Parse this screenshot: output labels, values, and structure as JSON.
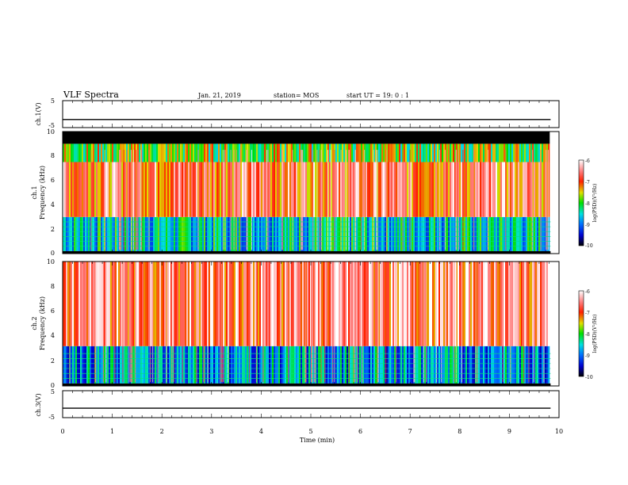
{
  "header": {
    "title": "VLF Spectra",
    "date": "Jan. 21, 2019",
    "station": "station= MOS",
    "start": "start UT =  19: 0  : 1"
  },
  "chart_data": [
    {
      "type": "line",
      "ylabel": "ch.1(V)",
      "ylim": [
        -5,
        5
      ],
      "yticks": [
        -5,
        5
      ],
      "series": [
        {
          "x": [
            0,
            9.83
          ],
          "y": [
            -2,
            -2
          ]
        }
      ]
    },
    {
      "type": "heatmap",
      "ylabel": "ch.1\nFrequency (kHz)",
      "ylim": [
        0,
        10
      ],
      "yticks": [
        0,
        2,
        4,
        6,
        8,
        10
      ],
      "colorbar": {
        "label": "log(PSD)(V²/Hz)",
        "range": [
          -10,
          -6
        ],
        "ticks": [
          -10,
          -9,
          -8,
          -7,
          -6
        ]
      },
      "bands": [
        {
          "from": 0.2,
          "to": 3.0,
          "level": -8.5
        },
        {
          "from": 3.0,
          "to": 7.5,
          "level": -6.8
        },
        {
          "from": 7.5,
          "to": 9.0,
          "level": -7.8
        },
        {
          "from": 9.0,
          "to": 10.0,
          "level": -10
        }
      ]
    },
    {
      "type": "heatmap",
      "ylabel": "ch.2\nFrequency (kHz)",
      "ylim": [
        0,
        10
      ],
      "yticks": [
        0,
        2,
        4,
        6,
        8,
        10
      ],
      "colorbar": {
        "label": "log(PSD)(V²/Hz)",
        "range": [
          -10,
          -6
        ],
        "ticks": [
          -10,
          -9,
          -8,
          -7,
          -6
        ]
      },
      "bands": [
        {
          "from": 0.2,
          "to": 3.2,
          "level": -8.8
        },
        {
          "from": 3.2,
          "to": 10.0,
          "level": -6.6
        }
      ]
    },
    {
      "type": "line",
      "ylabel": "ch.3(V)",
      "ylim": [
        -5,
        5
      ],
      "yticks": [
        -5,
        5
      ],
      "xlabel": "Time (min)",
      "xlim": [
        0,
        10
      ],
      "xticks": [
        0,
        1,
        2,
        3,
        4,
        5,
        6,
        7,
        8,
        9,
        10
      ],
      "series": [
        {
          "x": [
            0,
            9.83
          ],
          "y": [
            -1.5,
            -1.5
          ]
        }
      ]
    }
  ]
}
